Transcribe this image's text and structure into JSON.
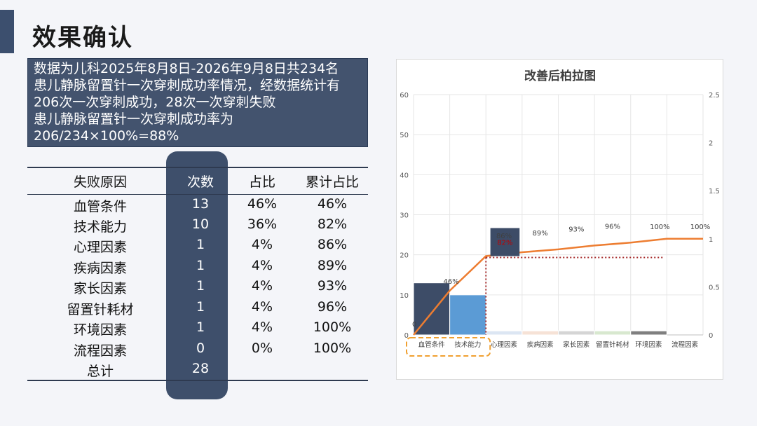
{
  "page": {
    "title": "效果确认"
  },
  "info": {
    "lines": [
      "数据为儿科2025年8月8日-2026年9月8日共234名",
      "患儿静脉留置针一次穿刺成功率情况，经数据统计有",
      "206次一次穿刺成功，28次一次穿刺失败",
      "患儿静脉留置针一次穿刺成功率为",
      "206/234×100%=88%"
    ]
  },
  "table": {
    "headers": [
      "失败原因",
      "次数",
      "占比",
      "累计占比"
    ],
    "rows": [
      [
        "血管条件",
        "13",
        "46%",
        "46%"
      ],
      [
        "技术能力",
        "10",
        "36%",
        "82%"
      ],
      [
        "心理因素",
        "1",
        "4%",
        "86%"
      ],
      [
        "疾病因素",
        "1",
        "4%",
        "89%"
      ],
      [
        "家长因素",
        "1",
        "4%",
        "93%"
      ],
      [
        "留置针耗材",
        "1",
        "4%",
        "96%"
      ],
      [
        "环境因素",
        "1",
        "4%",
        "100%"
      ],
      [
        "流程因素",
        "0",
        "0%",
        "100%"
      ]
    ],
    "total": [
      "总计",
      "28"
    ]
  },
  "chart_data": {
    "type": "bar",
    "title": "改善后柏拉图",
    "categories": [
      "血管条件",
      "技术能力",
      "心理因素",
      "疾病因素",
      "家长因素",
      "留置针耗材",
      "环境因素",
      "流程因素"
    ],
    "values": [
      13,
      10,
      1,
      1,
      1,
      1,
      1,
      0
    ],
    "cumulative": [
      0.46,
      0.82,
      0.86,
      0.89,
      0.93,
      0.96,
      1.0,
      1.0
    ],
    "cumulative_labels": [
      "46%",
      "82%",
      "86%",
      "89%",
      "93%",
      "96%",
      "100%",
      "100%"
    ],
    "bar_colors": [
      "#3d4c67",
      "#5b9bd5",
      "#dce6f3",
      "#f6e2d6",
      "#d5d5d5",
      "#d8e8cf",
      "#7f7f7f",
      "#7f7f7f"
    ],
    "line_color": "#ed7d31",
    "y_ticks": [
      0,
      10,
      20,
      30,
      40,
      50,
      60
    ],
    "y2_ticks": [
      "0",
      "0.5",
      "1",
      "1.5",
      "2",
      "2.5"
    ],
    "ylim": [
      0,
      60
    ],
    "y2lim": [
      0,
      2.5
    ],
    "start_point_label": "0",
    "grid": true
  }
}
